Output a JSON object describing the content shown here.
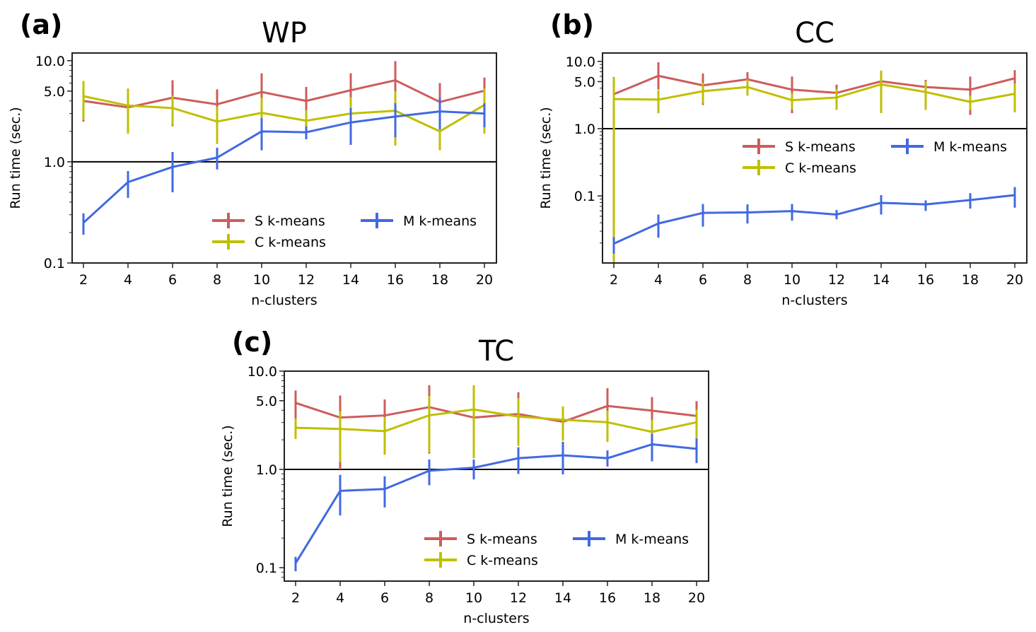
{
  "figure": {
    "description": "Run time comparison of S, C and M k-means across n-clusters for three datasets"
  },
  "chart_data": [
    {
      "id": "a",
      "type": "line",
      "panel_label": "(a)",
      "title": "WP",
      "xlabel": "n-clusters",
      "ylabel": "Run time (sec.)",
      "yscale": "log",
      "ylim": [
        0.1,
        11.9
      ],
      "yticks": [
        0.1,
        1.0,
        5.0,
        10.0
      ],
      "ytick_labels": [
        "0.1",
        "1.0",
        "5.0",
        "10.0"
      ],
      "x": [
        2,
        4,
        6,
        8,
        10,
        12,
        14,
        16,
        18,
        20
      ],
      "xtick_labels": [
        "2",
        "4",
        "6",
        "8",
        "10",
        "12",
        "14",
        "16",
        "18",
        "20"
      ],
      "reference_line": 1.0,
      "legend": {
        "placement": "lower-right",
        "columns": 2
      },
      "series": [
        {
          "name": "S k-means",
          "color": "#cd5c5c",
          "values": [
            4.0,
            3.45,
            4.3,
            3.7,
            4.9,
            4.0,
            5.1,
            6.4,
            3.9,
            5.05
          ],
          "err_low": [
            2.5,
            2.35,
            2.25,
            2.6,
            3.2,
            2.9,
            3.4,
            4.1,
            2.6,
            3.6
          ],
          "err_high": [
            5.6,
            4.6,
            6.4,
            5.2,
            7.5,
            5.5,
            7.5,
            9.9,
            6.0,
            6.8
          ]
        },
        {
          "name": "C k-means",
          "color": "#bfbf00",
          "values": [
            4.45,
            3.6,
            3.4,
            2.5,
            3.05,
            2.55,
            3.0,
            3.2,
            2.0,
            3.65
          ],
          "err_low": [
            2.6,
            1.9,
            2.3,
            1.5,
            2.1,
            1.85,
            2.05,
            1.45,
            1.3,
            1.9
          ],
          "err_high": [
            6.3,
            5.3,
            4.5,
            3.5,
            4.3,
            3.25,
            4.35,
            5.0,
            2.8,
            5.3
          ]
        },
        {
          "name": "M k-means",
          "color": "#4169e1",
          "values": [
            0.25,
            0.63,
            0.89,
            1.1,
            2.0,
            1.96,
            2.45,
            2.8,
            3.15,
            3.0
          ],
          "err_low": [
            0.19,
            0.44,
            0.5,
            0.84,
            1.3,
            1.67,
            1.47,
            1.75,
            2.1,
            2.2
          ],
          "err_high": [
            0.31,
            0.81,
            1.25,
            1.38,
            2.7,
            2.24,
            3.4,
            3.8,
            4.3,
            3.8
          ]
        }
      ]
    },
    {
      "id": "b",
      "type": "line",
      "panel_label": "(b)",
      "title": "CC",
      "xlabel": "n-clusters",
      "ylabel": "Run time (sec.)",
      "yscale": "log",
      "ylim": [
        0.0101,
        13.3
      ],
      "yticks": [
        0.1,
        1.0,
        5.0,
        10.0
      ],
      "ytick_labels": [
        "0.1",
        "1.0",
        "5.0",
        "10.0"
      ],
      "x": [
        2,
        4,
        6,
        8,
        10,
        12,
        14,
        16,
        18,
        20
      ],
      "xtick_labels": [
        "2",
        "4",
        "6",
        "8",
        "10",
        "12",
        "14",
        "16",
        "18",
        "20"
      ],
      "reference_line": 1.0,
      "legend": {
        "placement": "center-right",
        "columns": 2
      },
      "series": [
        {
          "name": "S k-means",
          "color": "#cd5c5c",
          "values": [
            3.25,
            6.1,
            4.4,
            5.4,
            3.8,
            3.4,
            5.05,
            4.15,
            3.8,
            5.6
          ],
          "err_low": [
            1.9,
            3.8,
            2.25,
            4.2,
            1.7,
            2.3,
            3.5,
            3.2,
            1.6,
            3.8
          ],
          "err_high": [
            5.85,
            9.7,
            6.6,
            6.9,
            5.95,
            4.5,
            6.6,
            5.3,
            5.95,
            7.4
          ]
        },
        {
          "name": "C k-means",
          "color": "#bfbf00",
          "values": [
            2.75,
            2.7,
            3.6,
            4.15,
            2.65,
            2.9,
            4.55,
            3.5,
            2.5,
            3.3
          ],
          "err_low": [
            0.0101,
            1.7,
            2.35,
            3.1,
            1.9,
            1.9,
            1.7,
            1.9,
            1.9,
            1.75
          ],
          "err_high": [
            5.8,
            3.7,
            4.8,
            5.4,
            3.4,
            3.9,
            7.3,
            5.05,
            3.1,
            4.7
          ]
        },
        {
          "name": "M k-means",
          "color": "#4169e1",
          "values": [
            0.0196,
            0.039,
            0.056,
            0.057,
            0.0595,
            0.053,
            0.079,
            0.075,
            0.087,
            0.103
          ],
          "err_low": [
            0.0139,
            0.024,
            0.035,
            0.039,
            0.043,
            0.045,
            0.053,
            0.06,
            0.065,
            0.067
          ],
          "err_high": [
            0.0245,
            0.053,
            0.076,
            0.075,
            0.076,
            0.062,
            0.103,
            0.086,
            0.11,
            0.136
          ]
        }
      ]
    },
    {
      "id": "c",
      "type": "line",
      "panel_label": "(c)",
      "title": "TC",
      "xlabel": "n-clusters",
      "ylabel": "Run time (sec.)",
      "yscale": "log",
      "ylim": [
        0.073,
        10.0
      ],
      "yticks": [
        0.1,
        1.0,
        5.0,
        10.0
      ],
      "ytick_labels": [
        "0.1",
        "1.0",
        "5.0",
        "10.0"
      ],
      "x": [
        2,
        4,
        6,
        8,
        10,
        12,
        14,
        16,
        18,
        20
      ],
      "xtick_labels": [
        "2",
        "4",
        "6",
        "8",
        "10",
        "12",
        "14",
        "16",
        "18",
        "20"
      ],
      "reference_line": 1.0,
      "legend": {
        "placement": "lower-right",
        "columns": 2
      },
      "series": [
        {
          "name": "S k-means",
          "color": "#cd5c5c",
          "values": [
            4.75,
            3.37,
            3.54,
            4.3,
            3.37,
            3.66,
            3.05,
            4.42,
            3.96,
            3.5
          ],
          "err_low": [
            3.3,
            1.0,
            2.3,
            1.45,
            2.2,
            2.3,
            2.0,
            1.96,
            2.7,
            2.3
          ],
          "err_high": [
            6.35,
            5.65,
            5.15,
            7.2,
            4.6,
            6.1,
            4.2,
            6.7,
            5.45,
            4.95
          ]
        },
        {
          "name": "C k-means",
          "color": "#bfbf00",
          "values": [
            2.65,
            2.58,
            2.45,
            3.55,
            4.07,
            3.45,
            3.2,
            3.02,
            2.41,
            3.02
          ],
          "err_low": [
            2.04,
            1.19,
            1.41,
            1.49,
            1.3,
            1.74,
            1.96,
            1.9,
            1.9,
            2.07
          ],
          "err_high": [
            3.3,
            3.9,
            3.4,
            5.6,
            7.2,
            5.3,
            4.37,
            3.95,
            3.2,
            4.07
          ]
        },
        {
          "name": "M k-means",
          "color": "#4169e1",
          "values": [
            0.111,
            0.605,
            0.632,
            0.97,
            1.04,
            1.3,
            1.39,
            1.3,
            1.8,
            1.62
          ],
          "err_low": [
            0.092,
            0.34,
            0.41,
            0.69,
            0.79,
            0.9,
            0.89,
            1.07,
            1.21,
            1.16
          ],
          "err_high": [
            0.129,
            0.88,
            0.85,
            1.26,
            1.26,
            1.68,
            1.91,
            1.56,
            2.31,
            2.07
          ]
        }
      ]
    }
  ]
}
